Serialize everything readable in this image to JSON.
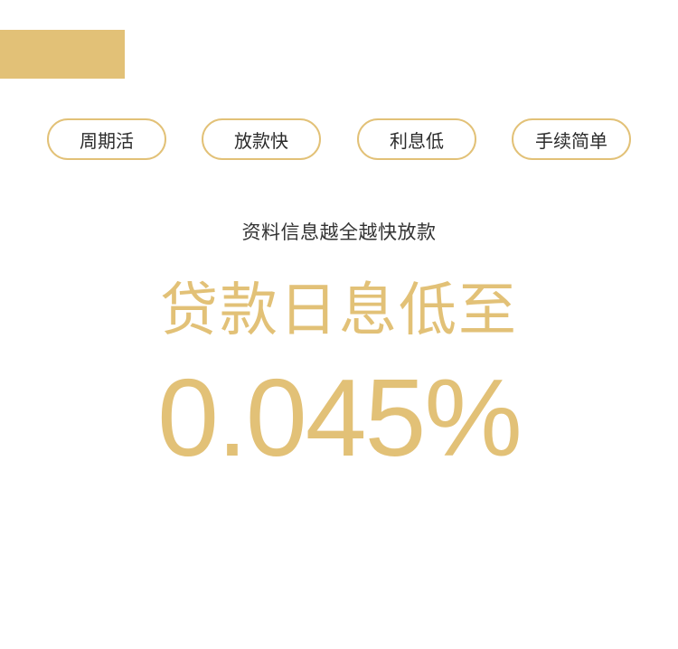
{
  "colors": {
    "accent": "#e2c177",
    "text": "#333333",
    "background": "#ffffff"
  },
  "tags": [
    {
      "label": "周期活"
    },
    {
      "label": "放款快"
    },
    {
      "label": "利息低"
    },
    {
      "label": "手续简单"
    }
  ],
  "promo": {
    "subtitle": "资料信息越全越快放款",
    "headline": "贷款日息低至",
    "rate": "0.045%"
  }
}
